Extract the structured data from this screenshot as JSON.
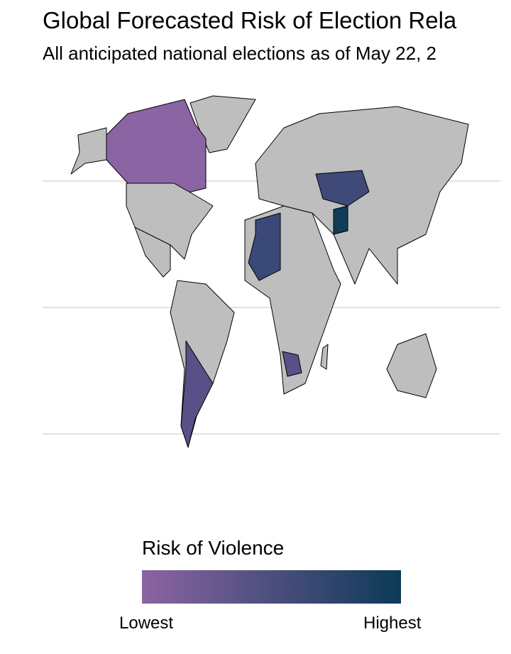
{
  "header": {
    "title": "Global Forecasted Risk of Election Rela",
    "subtitle": "All anticipated national elections as of May 22, 2"
  },
  "legend": {
    "title": "Risk of Violence",
    "low_label": "Lowest",
    "high_label": "Highest",
    "colors": [
      "#8c64a2",
      "#0c3a58"
    ]
  }
}
